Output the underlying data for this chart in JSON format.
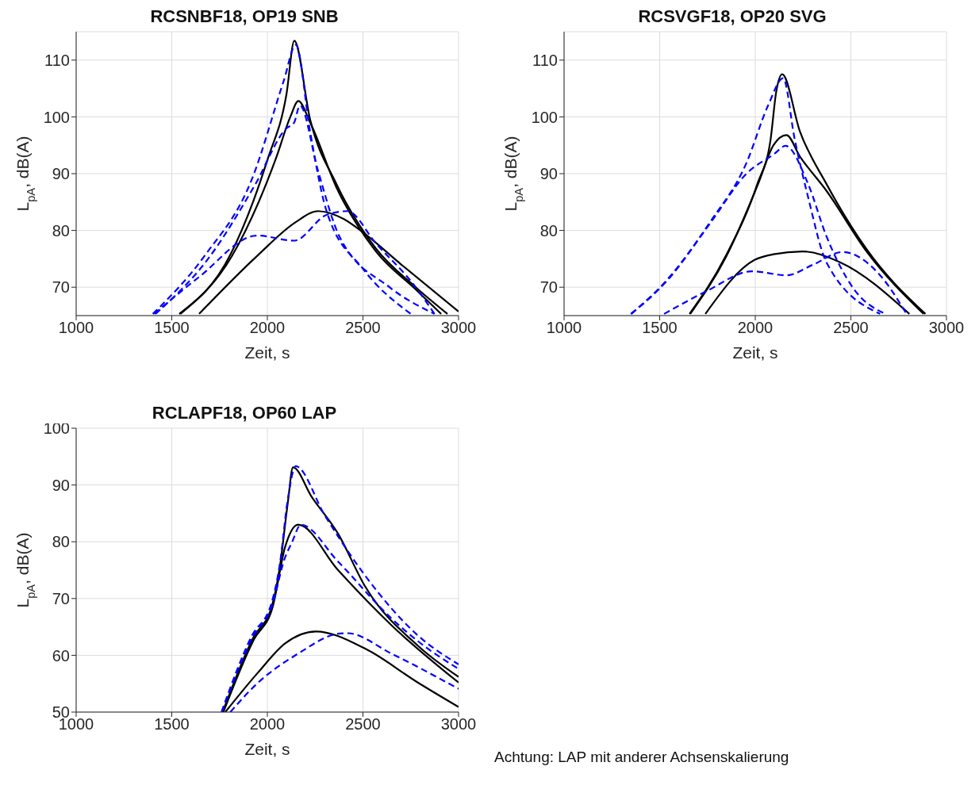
{
  "chart_data": [
    {
      "type": "line",
      "title": "RCSNBF18, OP19 SNB",
      "xlabel": "Zeit, s",
      "ylabel": "L$_{pA}$, dB(A)",
      "xlim": [
        1000,
        3000
      ],
      "xticks": [
        1000,
        1500,
        2000,
        2500,
        3000
      ],
      "ylim": [
        65,
        115
      ],
      "yticks": [
        70,
        80,
        90,
        100,
        110
      ],
      "grid": true,
      "legend": false,
      "series": [
        {
          "color": "#000000",
          "line_style": "solid",
          "x": [
            1539,
            1809,
            2003,
            2100,
            2141,
            2224,
            2361,
            2568,
            2776,
            2942
          ],
          "values": [
            65.3,
            75.9,
            92.7,
            104,
            113.4,
            99.5,
            88.2,
            76.8,
            70,
            65.3
          ]
        },
        {
          "color": "#000000",
          "line_style": "solid",
          "x": [
            1545,
            1815,
            2045,
            2120,
            2162,
            2224,
            2361,
            2568,
            2776,
            2909
          ],
          "values": [
            65.3,
            75.5,
            92.7,
            100,
            102.8,
            99,
            87.6,
            76.3,
            69.6,
            65.3
          ]
        },
        {
          "color": "#000000",
          "line_style": "solid",
          "x": [
            1643,
            1946,
            2150,
            2265,
            2400,
            2502,
            2700,
            3000
          ],
          "values": [
            65.3,
            75.5,
            81.5,
            83.4,
            82,
            79.6,
            74,
            65.7
          ]
        },
        {
          "color": "#0000ff",
          "line_style": "dashed",
          "x": [
            1401,
            1671,
            1920,
            2086,
            2149,
            2224,
            2307,
            2501,
            2750
          ],
          "values": [
            65.3,
            75.5,
            89.1,
            106.4,
            112.7,
            97.3,
            83.7,
            73.2,
            65.3
          ]
        },
        {
          "color": "#0000ff",
          "line_style": "dashed",
          "x": [
            1415,
            1690,
            1935,
            2100,
            2140,
            2170,
            2265,
            2376,
            2639,
            2874
          ],
          "values": [
            65.3,
            75,
            88,
            98,
            99,
            102,
            90.5,
            79,
            70,
            65.3
          ]
        },
        {
          "color": "#0000ff",
          "line_style": "dashed",
          "x": [
            1408,
            1643,
            1946,
            2141,
            2307,
            2418,
            2568,
            2776,
            2874
          ],
          "values": [
            65.3,
            71.8,
            79.1,
            78.2,
            82.7,
            83.4,
            77.7,
            70,
            65.3
          ]
        }
      ]
    },
    {
      "type": "line",
      "title": "RCSVGF18, OP20 SVG",
      "xlabel": "Zeit, s",
      "ylabel": "L$_{pA}$, dB(A)",
      "xlim": [
        1000,
        3000
      ],
      "xticks": [
        1000,
        1500,
        2000,
        2500,
        3000
      ],
      "ylim": [
        65,
        115
      ],
      "yticks": [
        70,
        80,
        90,
        100,
        110
      ],
      "grid": true,
      "legend": false,
      "series": [
        {
          "color": "#000000",
          "line_style": "solid",
          "x": [
            1656,
            1844,
            2011,
            2080,
            2109,
            2141,
            2234,
            2372,
            2582,
            2890
          ],
          "values": [
            65.3,
            75.4,
            88.2,
            96,
            104.3,
            107.5,
            97.4,
            88.2,
            76.7,
            65.3
          ]
        },
        {
          "color": "#000000",
          "line_style": "solid",
          "x": [
            1660,
            1848,
            2015,
            2095,
            2163,
            2234,
            2372,
            2582,
            2880
          ],
          "values": [
            65.3,
            75.4,
            88.2,
            95,
            96.8,
            93,
            87,
            76.3,
            65.3
          ]
        },
        {
          "color": "#000000",
          "line_style": "solid",
          "x": [
            1739,
            1996,
            2095,
            2247,
            2443,
            2806
          ],
          "values": [
            65.3,
            74.8,
            75.8,
            76.3,
            74.4,
            65.3
          ]
        },
        {
          "color": "#0000ff",
          "line_style": "dashed",
          "x": [
            1349,
            1536,
            1760,
            1954,
            2067,
            2146,
            2206,
            2276,
            2372,
            2653
          ],
          "values": [
            65.3,
            71.2,
            81.3,
            91.9,
            102,
            106.8,
            96.1,
            85.9,
            74.4,
            65.3
          ]
        },
        {
          "color": "#0000ff",
          "line_style": "dashed",
          "x": [
            1352,
            1540,
            1765,
            1954,
            2100,
            2158,
            2276,
            2372,
            2513,
            2680
          ],
          "values": [
            65.3,
            71.2,
            81.3,
            90,
            93.5,
            94.9,
            88.2,
            79,
            69.8,
            65.3
          ]
        },
        {
          "color": "#0000ff",
          "line_style": "dashed",
          "x": [
            1523,
            1745,
            1983,
            2163,
            2304,
            2456,
            2653,
            2791
          ],
          "values": [
            65.3,
            69.3,
            72.8,
            72.1,
            74,
            76.2,
            72.1,
            65.3
          ]
        }
      ]
    },
    {
      "type": "line",
      "title": "RCLAPF18, OP60 LAP",
      "xlabel": "Zeit, s",
      "ylabel": "L$_{pA}$, dB(A)",
      "xlim": [
        1000,
        3000
      ],
      "xticks": [
        1000,
        1500,
        2000,
        2500,
        3000
      ],
      "ylim": [
        50,
        100
      ],
      "yticks": [
        50,
        60,
        70,
        80,
        90,
        100
      ],
      "grid": true,
      "legend": false,
      "annotations": [
        "Achtung: LAP mit anderer Achsenskalierung"
      ],
      "series": [
        {
          "color": "#000000",
          "line_style": "solid",
          "x": [
            1766,
            1926,
            2023,
            2065,
            2107,
            2134,
            2232,
            2370,
            2510,
            2787,
            3000
          ],
          "values": [
            50,
            63.1,
            68.6,
            75.5,
            86.9,
            93.1,
            87.9,
            81.4,
            72.2,
            61.7,
            56.2
          ]
        },
        {
          "color": "#000000",
          "line_style": "solid",
          "x": [
            1770,
            1930,
            2027,
            2093,
            2161,
            2370,
            2649,
            3000
          ],
          "values": [
            50,
            62.8,
            68.4,
            79.1,
            83,
            75,
            65.3,
            55.2
          ]
        },
        {
          "color": "#000000",
          "line_style": "solid",
          "x": [
            1780,
            1952,
            2093,
            2253,
            2510,
            2787,
            3000
          ],
          "values": [
            50,
            57,
            62.1,
            64.2,
            61.2,
            55.2,
            50.9
          ]
        },
        {
          "color": "#0000ff",
          "line_style": "dashed",
          "x": [
            1760,
            1920,
            2020,
            2065,
            2107,
            2148,
            2301,
            2510,
            2787,
            3000
          ],
          "values": [
            50,
            63.5,
            69,
            76,
            87.5,
            93.3,
            84.6,
            74.1,
            63.5,
            58.4
          ]
        },
        {
          "color": "#0000ff",
          "line_style": "dashed",
          "x": [
            1762,
            1925,
            2025,
            2090,
            2130,
            2175,
            2370,
            2649,
            2787,
            3000
          ],
          "values": [
            50,
            63.3,
            68.8,
            77,
            80,
            83,
            76.5,
            66.5,
            62.5,
            57.6
          ]
        },
        {
          "color": "#0000ff",
          "line_style": "dashed",
          "x": [
            1806,
            1952,
            2161,
            2370,
            2418,
            2649,
            3000
          ],
          "values": [
            50,
            55.2,
            60.3,
            63.8,
            63.9,
            60.3,
            54.1
          ]
        }
      ]
    }
  ]
}
